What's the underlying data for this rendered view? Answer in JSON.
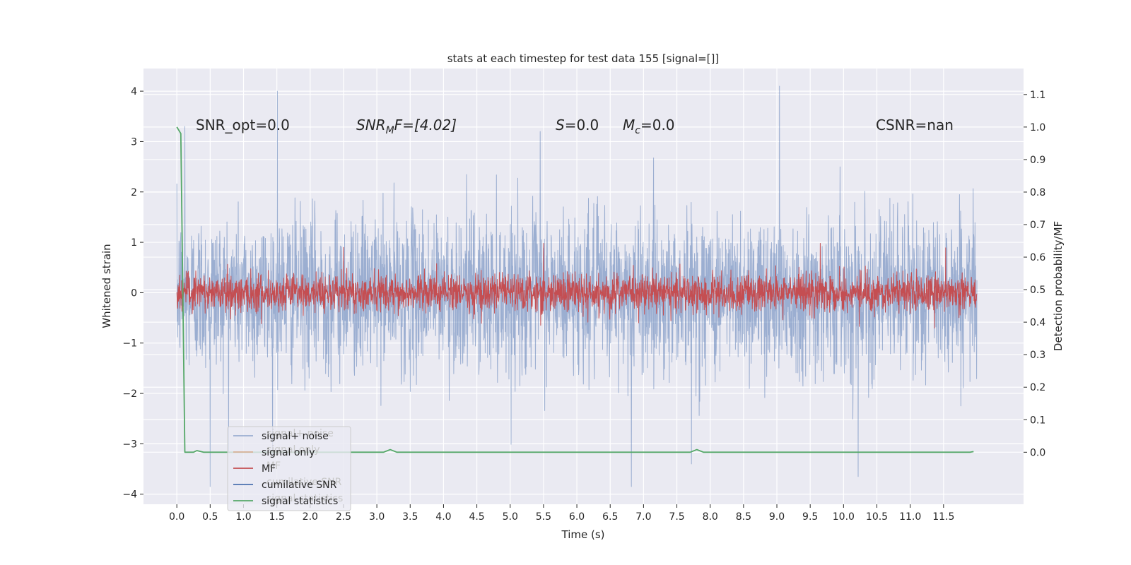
{
  "chart_data": {
    "type": "line",
    "title": "stats at each timestep for test data 155 [signal=[]]",
    "xlabel": "Time (s)",
    "ylabel": "Whitened strain",
    "y2label": "Detection probability/MF",
    "xlim": [
      -0.5,
      12.7
    ],
    "ylim": [
      -4.2,
      4.45
    ],
    "y2lim": [
      -0.16,
      1.18
    ],
    "x_ticks": [
      0.0,
      0.5,
      1.0,
      1.5,
      2.0,
      2.5,
      3.0,
      3.5,
      4.0,
      4.5,
      5.0,
      5.5,
      6.0,
      6.5,
      7.0,
      7.5,
      8.0,
      8.5,
      9.0,
      9.5,
      10.0,
      10.5,
      11.0,
      11.5
    ],
    "x_tick_labels": [
      "0.0",
      "0.5",
      "1.0",
      "1.5",
      "2.0",
      "2.5",
      "3.0",
      "3.5",
      "4.0",
      "4.5",
      "5.0",
      "5.5",
      "6.0",
      "6.5",
      "7.0",
      "7.5",
      "8.0",
      "8.5",
      "9.0",
      "9.5",
      "10.0",
      "10.5",
      "11.0",
      "11.5"
    ],
    "y_ticks": [
      -4,
      -3,
      -2,
      -1,
      0,
      1,
      2,
      3,
      4
    ],
    "y_tick_labels": [
      "−4",
      "−3",
      "−2",
      "−1",
      "0",
      "1",
      "2",
      "3",
      "4"
    ],
    "y2_ticks": [
      0.0,
      0.1,
      0.2,
      0.3,
      0.4,
      0.5,
      0.6,
      0.7,
      0.8,
      0.9,
      1.0,
      1.1
    ],
    "y2_tick_labels": [
      "0.0",
      "0.1",
      "0.2",
      "0.3",
      "0.4",
      "0.5",
      "0.6",
      "0.7",
      "0.8",
      "0.9",
      "1.0",
      "1.1"
    ],
    "grid": true,
    "legend_position": "lower-left",
    "legend": [
      {
        "label": "signal+ noise",
        "color": "#4c72b0",
        "alpha": 0.5
      },
      {
        "label": "signal only",
        "color": "#dd8452",
        "alpha": 0.5
      },
      {
        "label": "MF",
        "color": "#c44e52",
        "alpha": 1
      },
      {
        "label": "cumilative SNR",
        "color": "#4c72b0",
        "alpha": 1
      },
      {
        "label": "signal statistics",
        "color": "#55a868",
        "alpha": 1
      }
    ],
    "legend_ghost_labels": [
      "signal+ noise",
      "signal only",
      "MF",
      "cumilative SNR",
      "signal statistics"
    ],
    "annotations": [
      {
        "text": "SNR_opt=0.0"
      },
      {
        "text": "SNR_MF=[4.02]",
        "base": "SNR",
        "sub": "M",
        "rest": "F=[4.02]"
      },
      {
        "text": "S=0.0",
        "base": "S",
        "rest": "=0.0"
      },
      {
        "text": "M_c=0.0",
        "base": "M",
        "sub": "c",
        "rest": "=0.0"
      },
      {
        "text": "CSNR=nan"
      }
    ],
    "series": [
      {
        "name": "signal+ noise",
        "color": "#4c72b0",
        "axis": "left",
        "x_range": [
          0.0,
          12.0
        ],
        "sigma": 0.78,
        "peaks": [
          {
            "x": 1.51,
            "y": 4.0
          },
          {
            "x": 9.04,
            "y": 4.1
          },
          {
            "x": 0.12,
            "y": 3.3
          },
          {
            "x": 0.5,
            "y": -3.85
          },
          {
            "x": 6.82,
            "y": -3.85
          },
          {
            "x": 10.22,
            "y": -3.65
          },
          {
            "x": 7.72,
            "y": -3.4
          },
          {
            "x": 5.45,
            "y": 3.2
          }
        ]
      },
      {
        "name": "MF",
        "color": "#c44e52",
        "axis": "left",
        "x_range": [
          0.0,
          12.0
        ],
        "sigma": 0.19,
        "peaks": [
          {
            "x": 2.5,
            "y": 0.9
          },
          {
            "x": 5.5,
            "y": 0.98
          },
          {
            "x": 9.65,
            "y": 0.98
          }
        ]
      },
      {
        "name": "signal statistics",
        "color": "#55a868",
        "axis": "right",
        "x": [
          0.0,
          0.06,
          0.12,
          0.25,
          0.3,
          0.4,
          3.1,
          3.2,
          3.3,
          5.3,
          7.7,
          7.8,
          7.9,
          8.8,
          11.9,
          11.95
        ],
        "values": [
          1.0,
          0.98,
          0.0,
          0.0,
          0.005,
          0.0,
          0.0,
          0.008,
          0.0,
          0.0,
          0.0,
          0.008,
          0.0,
          0.0,
          0.0,
          0.002
        ]
      }
    ]
  }
}
